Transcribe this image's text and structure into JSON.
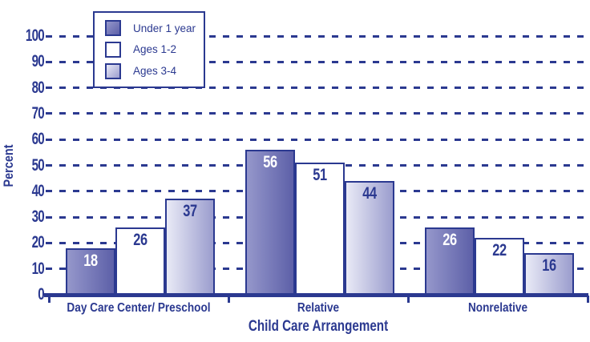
{
  "colors": {
    "ink": "#2b3990",
    "background": "#ffffff",
    "bar_dark_from": "#9597cb",
    "bar_dark_to": "#5d60a8",
    "bar_light_from": "#e9eaf6",
    "bar_light_to": "#9b9dce",
    "bar_white": "#ffffff",
    "value_label_on_dark": "#ffffff",
    "value_label_on_light": "#2b3990"
  },
  "chart_data": {
    "type": "bar",
    "title": "",
    "xlabel": "Child Care Arrangement",
    "ylabel": "Percent",
    "ylim": [
      0,
      100
    ],
    "yticks": [
      0,
      10,
      20,
      30,
      40,
      50,
      60,
      70,
      80,
      90,
      100
    ],
    "grid": "dashed-horizontal",
    "legend_position": "top-left",
    "categories": [
      "Day Care Center/ Preschool",
      "Relative",
      "Nonrelative"
    ],
    "series": [
      {
        "name": "Under 1 year",
        "fill": "gradient-dark",
        "label_color": "#ffffff",
        "values": [
          18,
          56,
          26
        ]
      },
      {
        "name": "Ages 1-2",
        "fill": "white",
        "label_color": "#2b3990",
        "values": [
          26,
          51,
          22
        ]
      },
      {
        "name": "Ages 3-4",
        "fill": "gradient-light",
        "label_color": "#2b3990",
        "values": [
          37,
          44,
          16
        ]
      }
    ]
  }
}
